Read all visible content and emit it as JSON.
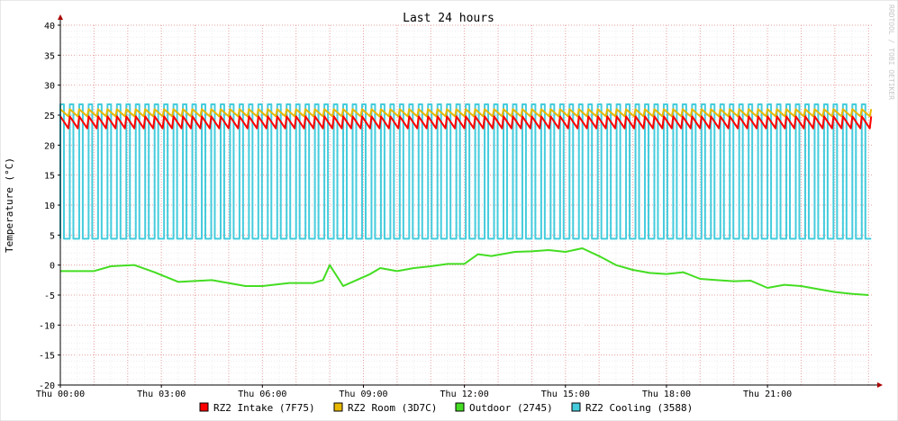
{
  "chart_data": {
    "type": "line",
    "title": "Last 24 hours",
    "ylabel": "Temperature (°C)",
    "xlabel": "",
    "watermark": "RRDTOOL / TOBI OETIKER",
    "ylim": [
      -20,
      40
    ],
    "xlim": [
      0,
      24.1
    ],
    "y_ticks": [
      -20,
      -15,
      -10,
      -5,
      0,
      5,
      10,
      15,
      20,
      25,
      30,
      35,
      40
    ],
    "x_ticks": [
      {
        "hour": 0,
        "label": "Thu 00:00"
      },
      {
        "hour": 3,
        "label": "Thu 03:00"
      },
      {
        "hour": 6,
        "label": "Thu 06:00"
      },
      {
        "hour": 9,
        "label": "Thu 09:00"
      },
      {
        "hour": 12,
        "label": "Thu 12:00"
      },
      {
        "hour": 15,
        "label": "Thu 15:00"
      },
      {
        "hour": 18,
        "label": "Thu 18:00"
      },
      {
        "hour": 21,
        "label": "Thu 21:00"
      }
    ],
    "grid": true,
    "legend_position": "bottom",
    "series": [
      {
        "name": "RZ2 Intake (7F75)",
        "color": "#ff0000",
        "pattern": "sawtooth",
        "cycle_hours": 0.28,
        "low": 22.8,
        "high": 24.8
      },
      {
        "name": "RZ2 Room (3D7C)",
        "color": "#e8b800",
        "pattern": "sawtooth",
        "cycle_hours": 0.28,
        "low": 24.8,
        "high": 26.0
      },
      {
        "name": "Outdoor (2745)",
        "color": "#44dd22",
        "pattern": "smooth",
        "x": [
          0,
          1.0,
          1.5,
          2.2,
          2.8,
          3.5,
          4.5,
          5.5,
          6.0,
          6.8,
          7.5,
          7.8,
          8.0,
          8.4,
          8.8,
          9.2,
          9.5,
          10.0,
          10.5,
          11.0,
          11.5,
          12.0,
          12.4,
          12.8,
          13.5,
          14.0,
          14.5,
          15.0,
          15.5,
          16.0,
          16.5,
          17.0,
          17.5,
          18.0,
          18.5,
          19.0,
          19.5,
          20.0,
          20.5,
          21.0,
          21.5,
          22.0,
          22.5,
          23.0,
          23.5,
          24.0
        ],
        "y": [
          -1.0,
          -1.0,
          -0.2,
          0.0,
          -1.2,
          -2.8,
          -2.5,
          -3.5,
          -3.5,
          -3.0,
          -3.0,
          -2.5,
          0.0,
          -3.5,
          -2.5,
          -1.5,
          -0.5,
          -1.0,
          -0.5,
          -0.2,
          0.2,
          0.2,
          1.8,
          1.5,
          2.2,
          2.3,
          2.5,
          2.2,
          2.8,
          1.5,
          0.0,
          -0.8,
          -1.3,
          -1.5,
          -1.2,
          -2.3,
          -2.5,
          -2.7,
          -2.6,
          -3.8,
          -3.3,
          -3.5,
          -4.0,
          -4.5,
          -4.8,
          -5.0
        ]
      },
      {
        "name": "RZ2 Cooling (3588)",
        "color": "#44ccdd",
        "pattern": "square_wave",
        "cycle_hours": 0.28,
        "duty_high": 0.38,
        "low": 4.4,
        "high": 26.8
      }
    ]
  }
}
